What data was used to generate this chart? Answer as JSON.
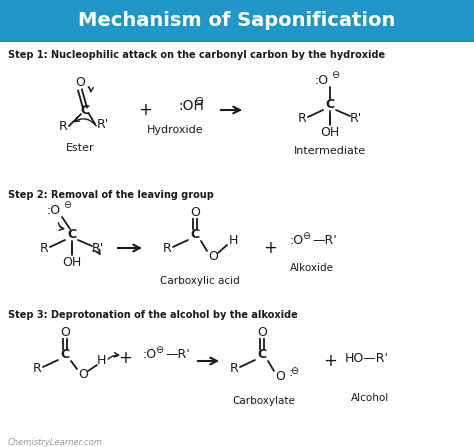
{
  "title": "Mechanism of Saponification",
  "title_bg": "#2196c8",
  "title_color": "white",
  "bg_color": "white",
  "step1_header": "Step 1: Nucleophilic attack on the carbonyl carbon by the hydroxide",
  "step2_header": "Step 2: Removal of the leaving group",
  "step3_header": "Step 3: Deprotonation of the alcohol by the alkoxide",
  "watermark": "ChemistryLearner.com",
  "text_color": "#1a1a1a",
  "step_bold": "#000000",
  "lw": 1.3
}
